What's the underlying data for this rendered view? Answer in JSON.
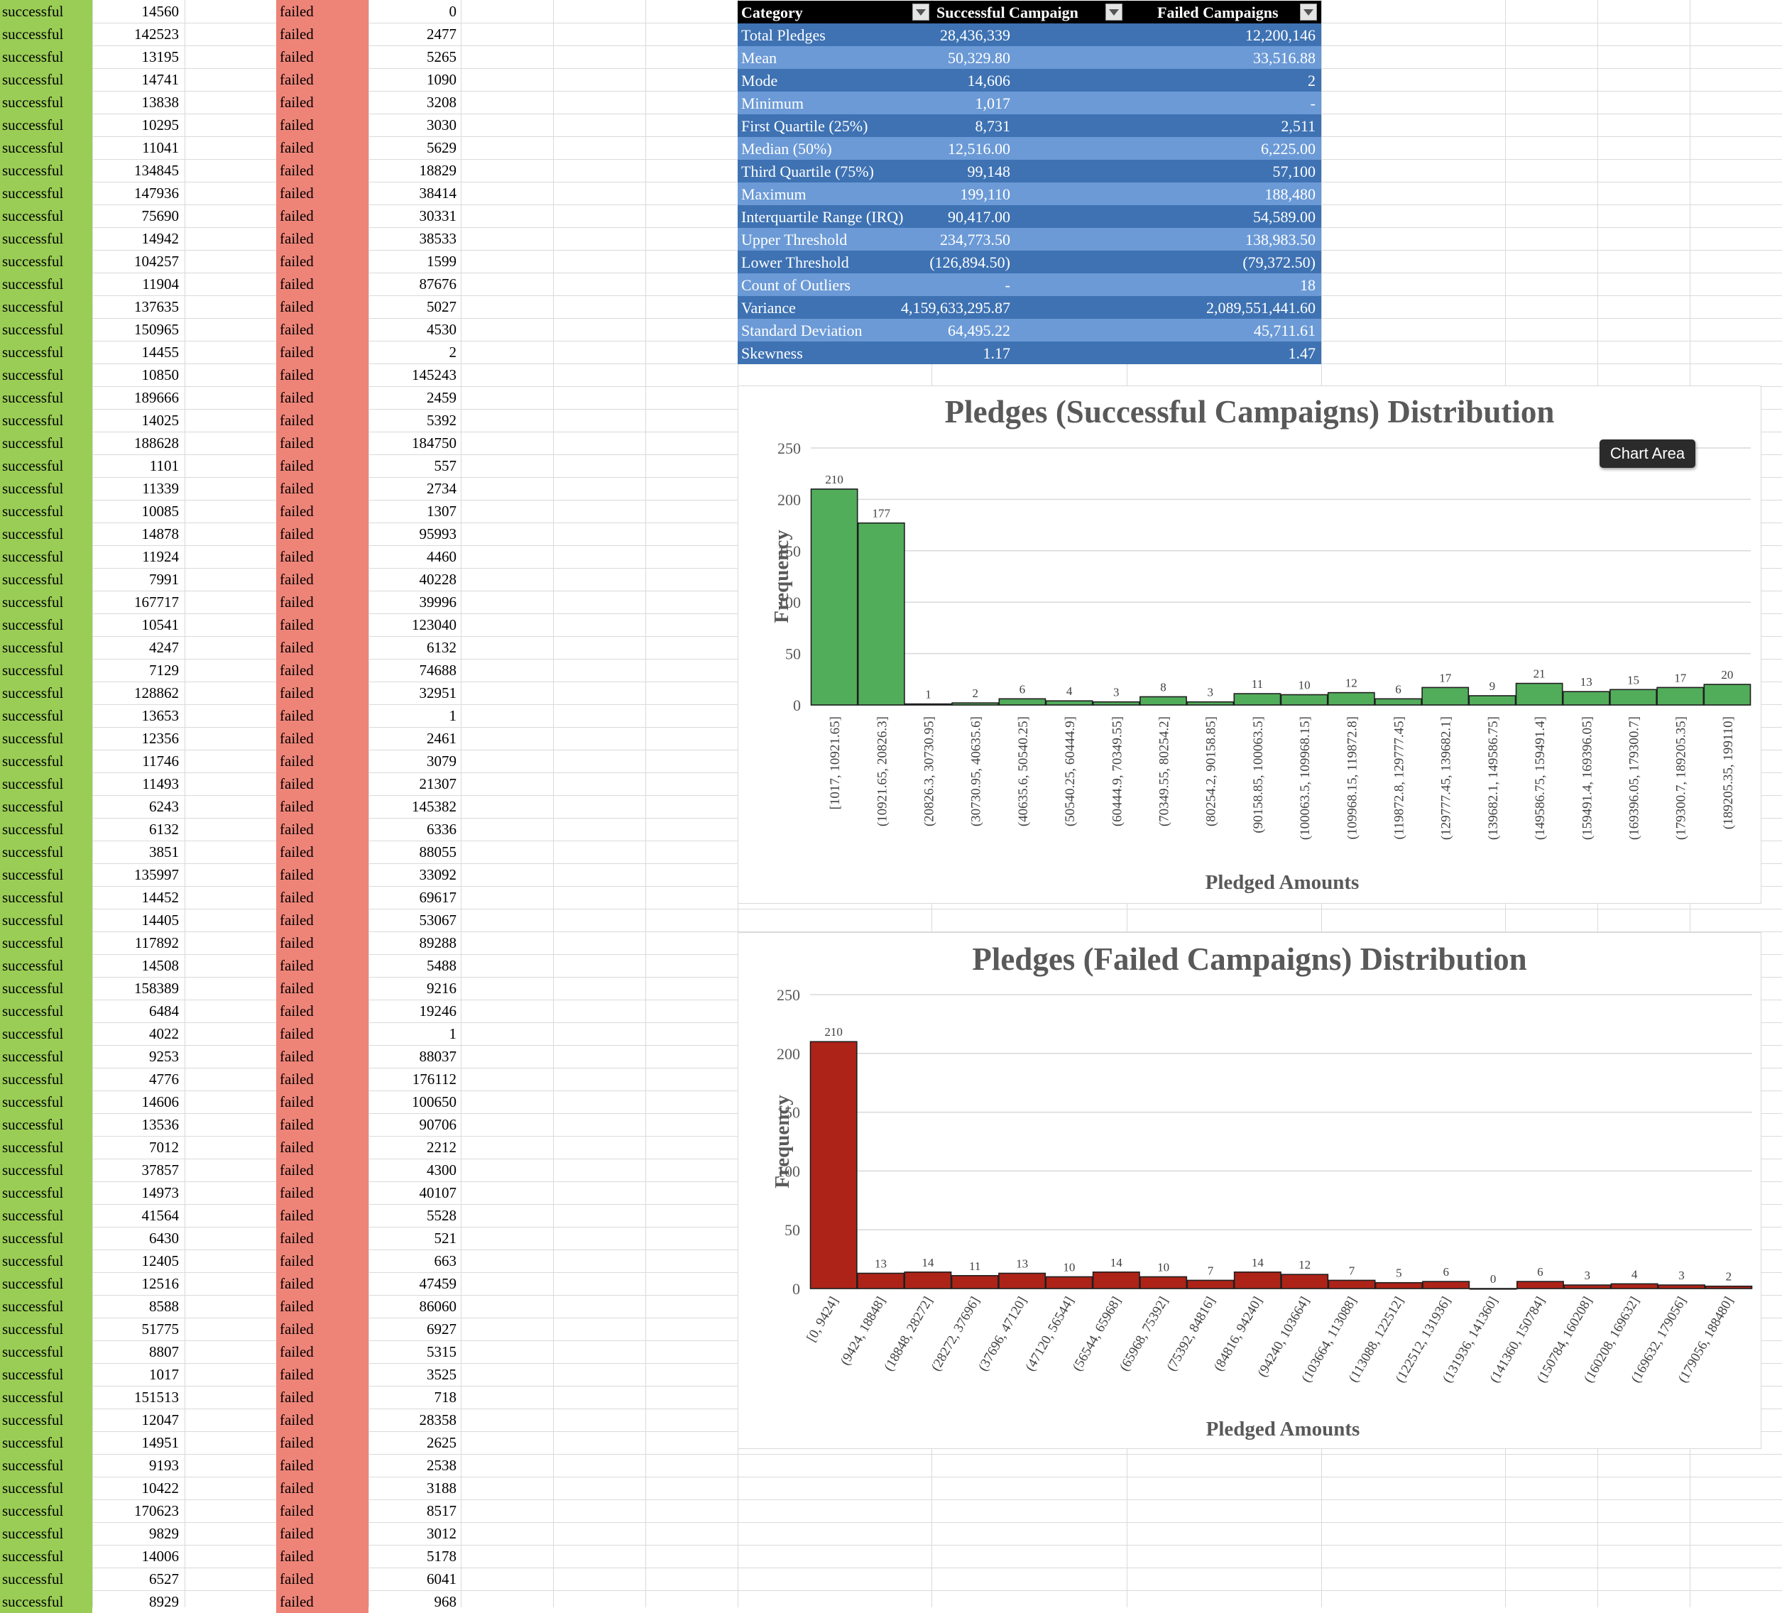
{
  "rows": [
    [
      "successful",
      "14560",
      "failed",
      "0"
    ],
    [
      "successful",
      "142523",
      "failed",
      "2477"
    ],
    [
      "successful",
      "13195",
      "failed",
      "5265"
    ],
    [
      "successful",
      "14741",
      "failed",
      "1090"
    ],
    [
      "successful",
      "13838",
      "failed",
      "3208"
    ],
    [
      "successful",
      "10295",
      "failed",
      "3030"
    ],
    [
      "successful",
      "11041",
      "failed",
      "5629"
    ],
    [
      "successful",
      "134845",
      "failed",
      "18829"
    ],
    [
      "successful",
      "147936",
      "failed",
      "38414"
    ],
    [
      "successful",
      "75690",
      "failed",
      "30331"
    ],
    [
      "successful",
      "14942",
      "failed",
      "38533"
    ],
    [
      "successful",
      "104257",
      "failed",
      "1599"
    ],
    [
      "successful",
      "11904",
      "failed",
      "87676"
    ],
    [
      "successful",
      "137635",
      "failed",
      "5027"
    ],
    [
      "successful",
      "150965",
      "failed",
      "4530"
    ],
    [
      "successful",
      "14455",
      "failed",
      "2"
    ],
    [
      "successful",
      "10850",
      "failed",
      "145243"
    ],
    [
      "successful",
      "189666",
      "failed",
      "2459"
    ],
    [
      "successful",
      "14025",
      "failed",
      "5392"
    ],
    [
      "successful",
      "188628",
      "failed",
      "184750"
    ],
    [
      "successful",
      "1101",
      "failed",
      "557"
    ],
    [
      "successful",
      "11339",
      "failed",
      "2734"
    ],
    [
      "successful",
      "10085",
      "failed",
      "1307"
    ],
    [
      "successful",
      "14878",
      "failed",
      "95993"
    ],
    [
      "successful",
      "11924",
      "failed",
      "4460"
    ],
    [
      "successful",
      "7991",
      "failed",
      "40228"
    ],
    [
      "successful",
      "167717",
      "failed",
      "39996"
    ],
    [
      "successful",
      "10541",
      "failed",
      "123040"
    ],
    [
      "successful",
      "4247",
      "failed",
      "6132"
    ],
    [
      "successful",
      "7129",
      "failed",
      "74688"
    ],
    [
      "successful",
      "128862",
      "failed",
      "32951"
    ],
    [
      "successful",
      "13653",
      "failed",
      "1"
    ],
    [
      "successful",
      "12356",
      "failed",
      "2461"
    ],
    [
      "successful",
      "11746",
      "failed",
      "3079"
    ],
    [
      "successful",
      "11493",
      "failed",
      "21307"
    ],
    [
      "successful",
      "6243",
      "failed",
      "145382"
    ],
    [
      "successful",
      "6132",
      "failed",
      "6336"
    ],
    [
      "successful",
      "3851",
      "failed",
      "88055"
    ],
    [
      "successful",
      "135997",
      "failed",
      "33092"
    ],
    [
      "successful",
      "14452",
      "failed",
      "69617"
    ],
    [
      "successful",
      "14405",
      "failed",
      "53067"
    ],
    [
      "successful",
      "117892",
      "failed",
      "89288"
    ],
    [
      "successful",
      "14508",
      "failed",
      "5488"
    ],
    [
      "successful",
      "158389",
      "failed",
      "9216"
    ],
    [
      "successful",
      "6484",
      "failed",
      "19246"
    ],
    [
      "successful",
      "4022",
      "failed",
      "1"
    ],
    [
      "successful",
      "9253",
      "failed",
      "88037"
    ],
    [
      "successful",
      "4776",
      "failed",
      "176112"
    ],
    [
      "successful",
      "14606",
      "failed",
      "100650"
    ],
    [
      "successful",
      "13536",
      "failed",
      "90706"
    ],
    [
      "successful",
      "7012",
      "failed",
      "2212"
    ],
    [
      "successful",
      "37857",
      "failed",
      "4300"
    ],
    [
      "successful",
      "14973",
      "failed",
      "40107"
    ],
    [
      "successful",
      "41564",
      "failed",
      "5528"
    ],
    [
      "successful",
      "6430",
      "failed",
      "521"
    ],
    [
      "successful",
      "12405",
      "failed",
      "663"
    ],
    [
      "successful",
      "12516",
      "failed",
      "47459"
    ],
    [
      "successful",
      "8588",
      "failed",
      "86060"
    ],
    [
      "successful",
      "51775",
      "failed",
      "6927"
    ],
    [
      "successful",
      "8807",
      "failed",
      "5315"
    ],
    [
      "successful",
      "1017",
      "failed",
      "3525"
    ],
    [
      "successful",
      "151513",
      "failed",
      "718"
    ],
    [
      "successful",
      "12047",
      "failed",
      "28358"
    ],
    [
      "successful",
      "14951",
      "failed",
      "2625"
    ],
    [
      "successful",
      "9193",
      "failed",
      "2538"
    ],
    [
      "successful",
      "10422",
      "failed",
      "3188"
    ],
    [
      "successful",
      "170623",
      "failed",
      "8517"
    ],
    [
      "successful",
      "9829",
      "failed",
      "3012"
    ],
    [
      "successful",
      "14006",
      "failed",
      "5178"
    ],
    [
      "successful",
      "6527",
      "failed",
      "6041"
    ],
    [
      "successful",
      "8929",
      "failed",
      "968"
    ]
  ],
  "stats_table": {
    "headers": [
      "Category",
      "Successful Campaign",
      "Failed Campaigns"
    ],
    "rows": [
      [
        "Total Pledges",
        "28,436,339",
        "12,200,146"
      ],
      [
        "Mean",
        "50,329.80",
        "33,516.88"
      ],
      [
        "Mode",
        "14,606",
        "2"
      ],
      [
        "Minimum",
        "1,017",
        "-"
      ],
      [
        "First Quartile (25%)",
        "8,731",
        "2,511"
      ],
      [
        "Median (50%)",
        "12,516.00",
        "6,225.00"
      ],
      [
        "Third Quartile (75%)",
        "99,148",
        "57,100"
      ],
      [
        "Maximum",
        "199,110",
        "188,480"
      ],
      [
        "Interquartile Range (IRQ)",
        "90,417.00",
        "54,589.00"
      ],
      [
        "Upper Threshold",
        "234,773.50",
        "138,983.50"
      ],
      [
        "Lower Threshold",
        "(126,894.50)",
        "(79,372.50)"
      ],
      [
        "Count of Outliers",
        "-",
        "18"
      ],
      [
        "Variance",
        "4,159,633,295.87",
        "2,089,551,441.60"
      ],
      [
        "Standard Deviation",
        "64,495.22",
        "45,711.61"
      ],
      [
        "Skewness",
        "1.17",
        "1.47"
      ]
    ]
  },
  "tooltip": "Chart Area",
  "chart_data": [
    {
      "type": "bar",
      "title": "Pledges (Successful Campaigns) Distribution",
      "xlabel": "Pledged Amounts",
      "ylabel": "Frequency",
      "ylim": [
        0,
        250
      ],
      "yticks": [
        "0",
        "50",
        "100",
        "150",
        "200",
        "250"
      ],
      "color": "#52ad5b",
      "grid": true,
      "categories": [
        "[1017, 10921.65]",
        "(10921.65, 20826.3]",
        "(20826.3, 30730.95]",
        "(30730.95, 40635.6]",
        "(40635.6, 50540.25]",
        "(50540.25, 60444.9]",
        "(60444.9, 70349.55]",
        "(70349.55, 80254.2]",
        "(80254.2, 90158.85]",
        "(90158.85, 100063.5]",
        "(100063.5, 109968.15]",
        "(109968.15, 119872.8]",
        "(119872.8, 129777.45]",
        "(129777.45, 139682.1]",
        "(139682.1, 149586.75]",
        "(149586.75, 159491.4]",
        "(159491.4, 169396.05]",
        "(169396.05, 179300.7]",
        "(179300.7, 189205.35]",
        "(189205.35, 199110]"
      ],
      "values": [
        210,
        177,
        1,
        2,
        6,
        4,
        3,
        8,
        3,
        11,
        10,
        12,
        6,
        17,
        9,
        21,
        13,
        15,
        17,
        20
      ],
      "value_labels": [
        "210",
        "177",
        "1",
        "2",
        "6",
        "4",
        "3",
        "8",
        "3",
        "11",
        "10",
        "12",
        "6",
        "17",
        "9",
        "21",
        "13",
        "15",
        "17",
        "20"
      ]
    },
    {
      "type": "bar",
      "title": "Pledges (Failed Campaigns) Distribution",
      "xlabel": "Pledged Amounts",
      "ylabel": "Frequency",
      "ylim": [
        0,
        250
      ],
      "yticks": [
        "0",
        "50",
        "100",
        "150",
        "200",
        "250"
      ],
      "color": "#ad2318",
      "grid": true,
      "categories": [
        "[0, 9424]",
        "(9424, 18848]",
        "(18848, 28272]",
        "(28272, 37696]",
        "(37696, 47120]",
        "(47120, 56544]",
        "(56544, 65968]",
        "(65968, 75392]",
        "(75392, 84816]",
        "(84816, 94240]",
        "(94240, 103664]",
        "(103664, 113088]",
        "(113088, 122512]",
        "(122512, 131936]",
        "(131936, 141360]",
        "(141360, 150784]",
        "(150784, 160208]",
        "(160208, 169632]",
        "(169632, 179056]",
        "(179056, 188480]"
      ],
      "values": [
        210,
        13,
        14,
        11,
        13,
        10,
        14,
        10,
        7,
        14,
        12,
        7,
        5,
        6,
        0,
        6,
        3,
        4,
        3,
        2
      ],
      "value_labels": [
        "210",
        "13",
        "14",
        "11",
        "13",
        "10",
        "14",
        "10",
        "7",
        "14",
        "12",
        "7",
        "5",
        "6",
        "0",
        "6",
        "3",
        "4",
        "3",
        "2"
      ]
    }
  ]
}
